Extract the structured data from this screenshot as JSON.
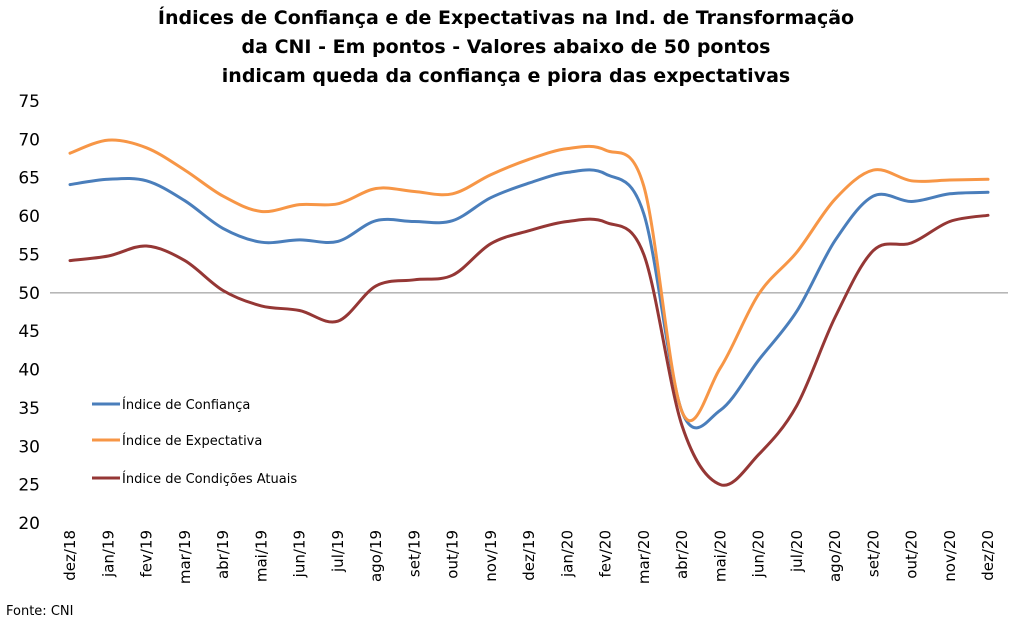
{
  "chart_data": {
    "type": "line",
    "title_lines": [
      "Índices de Confiança e de Expectativas na Ind. de Transformação",
      "da CNI - Em pontos - Valores abaixo de 50 pontos",
      "indicam queda da confiança e piora das expectativas"
    ],
    "categories": [
      "dez/18",
      "jan/19",
      "fev/19",
      "mar/19",
      "abr/19",
      "mai/19",
      "jun/19",
      "jul/19",
      "ago/19",
      "set/19",
      "out/19",
      "nov/19",
      "dez/19",
      "jan/20",
      "fev/20",
      "mar/20",
      "abr/20",
      "mai/20",
      "jun/20",
      "jul/20",
      "ago/20",
      "set/20",
      "out/20",
      "nov/20",
      "dez/20"
    ],
    "ylim": [
      20,
      75
    ],
    "yticks": [
      20,
      25,
      30,
      35,
      40,
      45,
      50,
      55,
      60,
      65,
      70,
      75
    ],
    "reference_line": 50,
    "legend_position": "left",
    "series": [
      {
        "name": "Índice de Confiança",
        "color": "#4a7ebb",
        "values": [
          64.1,
          64.8,
          64.6,
          62.0,
          58.4,
          56.6,
          56.9,
          56.7,
          59.4,
          59.3,
          59.4,
          62.4,
          64.3,
          65.7,
          65.5,
          60.3,
          34.5,
          34.7,
          41.2,
          47.6,
          56.8,
          62.6,
          61.9,
          62.9,
          63.1
        ]
      },
      {
        "name": "Índice de Expectativa",
        "color": "#f79646",
        "values": [
          68.2,
          69.9,
          68.9,
          66.0,
          62.6,
          60.6,
          61.5,
          61.6,
          63.6,
          63.2,
          62.9,
          65.4,
          67.4,
          68.8,
          68.6,
          63.9,
          34.5,
          40.2,
          49.8,
          55.3,
          62.2,
          66.0,
          64.6,
          64.7,
          64.8
        ]
      },
      {
        "name": "Índice de Condições Atuais",
        "color": "#953735",
        "values": [
          54.2,
          54.8,
          56.1,
          54.2,
          50.3,
          48.3,
          47.7,
          46.3,
          50.9,
          51.7,
          52.3,
          56.4,
          58.1,
          59.3,
          59.2,
          55.0,
          32.7,
          25.0,
          28.9,
          35.3,
          46.8,
          55.5,
          56.5,
          59.3,
          60.1
        ]
      }
    ]
  },
  "source_text": "Fonte: CNI"
}
